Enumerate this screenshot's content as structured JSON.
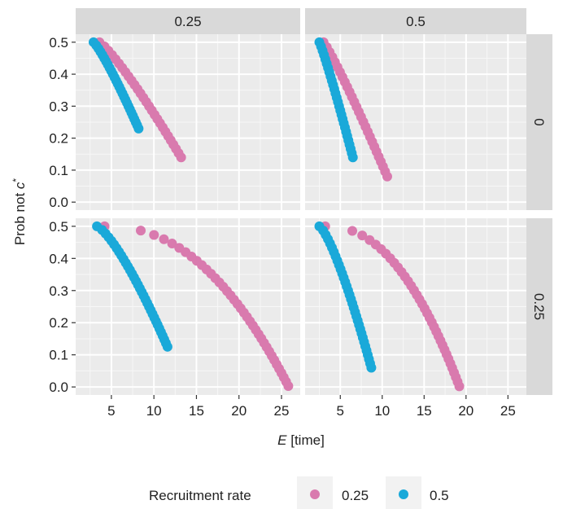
{
  "chart_data": {
    "type": "scatter",
    "facet_columns": [
      "0.25",
      "0.5"
    ],
    "facet_rows": [
      "0",
      "0.25"
    ],
    "xlabel_italic": "E",
    "xlabel_rest": " [time]",
    "ylabel_main": "Prob not ",
    "ylabel_italic": "c",
    "ylabel_sup": "*",
    "x_ticks": [
      5,
      10,
      15,
      20,
      25
    ],
    "x_tick_labels": [
      "5",
      "10",
      "15",
      "20",
      "25"
    ],
    "y_ticks": [
      0.0,
      0.1,
      0.2,
      0.3,
      0.4,
      0.5
    ],
    "y_tick_labels": [
      "0.0",
      "0.1",
      "0.2",
      "0.3",
      "0.4",
      "0.5"
    ],
    "xlim": [
      0.8,
      27.2
    ],
    "ylim": [
      -0.025,
      0.525
    ],
    "grid": true,
    "legend": {
      "title": "Recruitment rate",
      "position": "bottom",
      "entries": [
        {
          "label": "0.25",
          "color": "#D97AAE"
        },
        {
          "label": "0.5",
          "color": "#1AA9D9"
        }
      ]
    },
    "panels": [
      {
        "col": "0.25",
        "row": "0",
        "series": [
          {
            "legend": "0.25",
            "x_start": 3.6,
            "x_end": 13.2,
            "y_start": 0.5,
            "y_end": 0.14,
            "curve": 0.85,
            "n": 28
          },
          {
            "legend": "0.5",
            "x_start": 2.9,
            "x_end": 8.2,
            "y_start": 0.5,
            "y_end": 0.23,
            "curve": 0.85,
            "n": 28
          }
        ]
      },
      {
        "col": "0.5",
        "row": "0",
        "series": [
          {
            "legend": "0.25",
            "x_start": 3.0,
            "x_end": 10.6,
            "y_start": 0.5,
            "y_end": 0.08,
            "curve": 0.9,
            "n": 28
          },
          {
            "legend": "0.5",
            "x_start": 2.5,
            "x_end": 6.5,
            "y_start": 0.5,
            "y_end": 0.14,
            "curve": 0.9,
            "n": 28
          }
        ]
      },
      {
        "col": "0.25",
        "row": "0.25",
        "series": [
          {
            "legend": "0.25",
            "x_start": 4.2,
            "x_end": 25.8,
            "y_start": 0.5,
            "y_end": 0.003,
            "curve": 0.45,
            "n": 38
          },
          {
            "legend": "0.5",
            "x_start": 3.3,
            "x_end": 11.6,
            "y_start": 0.5,
            "y_end": 0.125,
            "curve": 0.75,
            "n": 34
          }
        ]
      },
      {
        "col": "0.5",
        "row": "0.25",
        "series": [
          {
            "legend": "0.25",
            "x_start": 3.2,
            "x_end": 19.2,
            "y_start": 0.5,
            "y_end": 0.002,
            "curve": 0.45,
            "n": 36
          },
          {
            "legend": "0.5",
            "x_start": 2.5,
            "x_end": 8.7,
            "y_start": 0.5,
            "y_end": 0.06,
            "curve": 0.75,
            "n": 34
          }
        ]
      }
    ],
    "colors": {
      "panel_bg": "#EBEBEB",
      "strip_bg": "#D9D9D9",
      "grid_major": "#FFFFFF",
      "text": "#222222",
      "tick_mark": "#333333"
    }
  }
}
